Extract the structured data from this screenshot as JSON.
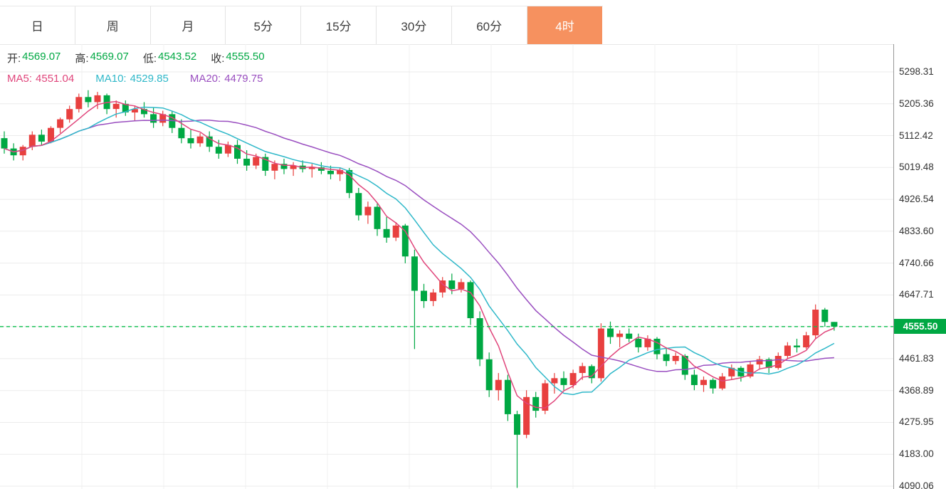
{
  "tabs": {
    "items": [
      {
        "label": "日"
      },
      {
        "label": "周"
      },
      {
        "label": "月"
      },
      {
        "label": "5分"
      },
      {
        "label": "15分"
      },
      {
        "label": "30分"
      },
      {
        "label": "60分"
      },
      {
        "label": "4时"
      }
    ],
    "active_index": 7,
    "active_bg": "#f6915f"
  },
  "legend": {
    "ohlc": [
      {
        "label": "开:",
        "value": "4569.07"
      },
      {
        "label": "高:",
        "value": "4569.07"
      },
      {
        "label": "低:",
        "value": "4543.52"
      },
      {
        "label": "收:",
        "value": "4555.50"
      }
    ],
    "mas": [
      {
        "label": "MA5:",
        "value": "4551.04"
      },
      {
        "label": "MA10:",
        "value": "4529.85"
      },
      {
        "label": "MA20:",
        "value": "4479.75"
      }
    ]
  },
  "chart_data": {
    "type": "candlestick",
    "timeframe": "4时",
    "color_convention": "red = up, green = down (CN market style)",
    "current_price": "4555.50",
    "last_bar": {
      "open": "4569.07",
      "high": "4569.07",
      "low": "4543.52",
      "close": "4555.50"
    },
    "ma_values": {
      "MA5": "4551.04",
      "MA10": "4529.85",
      "MA20": "4479.75"
    },
    "axis_ticks": [
      "5298.31",
      "5205.36",
      "5112.42",
      "5019.48",
      "4926.54",
      "4833.60",
      "4740.66",
      "4647.71",
      "4555.50",
      "4461.83",
      "4368.89",
      "4275.95",
      "4183.00",
      "4090.06"
    ],
    "ylim": [
      4090.06,
      5298.31
    ],
    "grid": true,
    "colors": {
      "up": "#e8403f",
      "down": "#00a843",
      "ma5": "#e0457b",
      "ma10": "#2fb8c9",
      "ma20": "#9a4fc0",
      "current_line": "#0bbf4d",
      "current_label_bg": "#00a843",
      "ohlc_value": "#00a843"
    },
    "candles": [
      [
        5105,
        5125,
        5060,
        5075
      ],
      [
        5075,
        5090,
        5040,
        5055
      ],
      [
        5055,
        5085,
        5040,
        5080
      ],
      [
        5080,
        5125,
        5070,
        5115
      ],
      [
        5115,
        5130,
        5085,
        5095
      ],
      [
        5095,
        5140,
        5090,
        5135
      ],
      [
        5135,
        5165,
        5120,
        5160
      ],
      [
        5160,
        5200,
        5150,
        5190
      ],
      [
        5190,
        5235,
        5180,
        5225
      ],
      [
        5225,
        5245,
        5195,
        5210
      ],
      [
        5210,
        5240,
        5190,
        5230
      ],
      [
        5230,
        5235,
        5175,
        5190
      ],
      [
        5190,
        5215,
        5165,
        5205
      ],
      [
        5205,
        5215,
        5170,
        5180
      ],
      [
        5180,
        5200,
        5155,
        5190
      ],
      [
        5190,
        5210,
        5165,
        5175
      ],
      [
        5175,
        5195,
        5135,
        5150
      ],
      [
        5150,
        5185,
        5140,
        5175
      ],
      [
        5175,
        5185,
        5120,
        5135
      ],
      [
        5135,
        5160,
        5090,
        5105
      ],
      [
        5105,
        5130,
        5075,
        5090
      ],
      [
        5090,
        5120,
        5080,
        5110
      ],
      [
        5110,
        5125,
        5065,
        5080
      ],
      [
        5080,
        5100,
        5045,
        5060
      ],
      [
        5060,
        5095,
        5050,
        5085
      ],
      [
        5085,
        5100,
        5030,
        5045
      ],
      [
        5045,
        5070,
        5010,
        5025
      ],
      [
        5025,
        5060,
        5015,
        5050
      ],
      [
        5050,
        5060,
        4995,
        5010
      ],
      [
        5010,
        5040,
        4985,
        5030
      ],
      [
        5030,
        5045,
        5000,
        5015
      ],
      [
        5015,
        5035,
        4995,
        5025
      ],
      [
        5025,
        5040,
        5005,
        5015
      ],
      [
        5015,
        5030,
        4990,
        5020
      ],
      [
        5020,
        5035,
        5000,
        5010
      ],
      [
        5010,
        5025,
        4985,
        5000
      ],
      [
        5000,
        5020,
        4980,
        5012
      ],
      [
        5012,
        5018,
        4930,
        4945
      ],
      [
        4945,
        4960,
        4865,
        4880
      ],
      [
        4880,
        4920,
        4855,
        4905
      ],
      [
        4905,
        4915,
        4820,
        4840
      ],
      [
        4840,
        4875,
        4800,
        4815
      ],
      [
        4815,
        4860,
        4805,
        4850
      ],
      [
        4850,
        4855,
        4740,
        4760
      ],
      [
        4760,
        4780,
        4490,
        4660
      ],
      [
        4660,
        4680,
        4610,
        4630
      ],
      [
        4630,
        4665,
        4615,
        4655
      ],
      [
        4655,
        4700,
        4640,
        4690
      ],
      [
        4690,
        4710,
        4650,
        4665
      ],
      [
        4665,
        4695,
        4655,
        4685
      ],
      [
        4685,
        4690,
        4560,
        4580
      ],
      [
        4580,
        4600,
        4440,
        4460
      ],
      [
        4460,
        4480,
        4350,
        4370
      ],
      [
        4370,
        4420,
        4340,
        4400
      ],
      [
        4400,
        4415,
        4280,
        4300
      ],
      [
        4300,
        4310,
        4085,
        4240
      ],
      [
        4240,
        4370,
        4230,
        4350
      ],
      [
        4350,
        4365,
        4290,
        4310
      ],
      [
        4310,
        4400,
        4300,
        4390
      ],
      [
        4390,
        4420,
        4360,
        4405
      ],
      [
        4405,
        4425,
        4370,
        4385
      ],
      [
        4385,
        4430,
        4375,
        4420
      ],
      [
        4420,
        4450,
        4400,
        4440
      ],
      [
        4440,
        4445,
        4390,
        4405
      ],
      [
        4405,
        4565,
        4395,
        4550
      ],
      [
        4550,
        4570,
        4505,
        4525
      ],
      [
        4525,
        4545,
        4495,
        4535
      ],
      [
        4535,
        4550,
        4510,
        4520
      ],
      [
        4520,
        4535,
        4480,
        4495
      ],
      [
        4495,
        4530,
        4485,
        4520
      ],
      [
        4520,
        4525,
        4460,
        4475
      ],
      [
        4475,
        4495,
        4440,
        4455
      ],
      [
        4455,
        4480,
        4445,
        4470
      ],
      [
        4470,
        4475,
        4400,
        4415
      ],
      [
        4415,
        4430,
        4370,
        4385
      ],
      [
        4385,
        4410,
        4365,
        4400
      ],
      [
        4400,
        4405,
        4360,
        4375
      ],
      [
        4375,
        4420,
        4370,
        4410
      ],
      [
        4410,
        4445,
        4400,
        4435
      ],
      [
        4435,
        4440,
        4395,
        4410
      ],
      [
        4410,
        4455,
        4405,
        4445
      ],
      [
        4445,
        4470,
        4430,
        4460
      ],
      [
        4460,
        4465,
        4420,
        4435
      ],
      [
        4435,
        4480,
        4430,
        4470
      ],
      [
        4470,
        4510,
        4460,
        4500
      ],
      [
        4500,
        4520,
        4480,
        4495
      ],
      [
        4495,
        4540,
        4490,
        4530
      ],
      [
        4530,
        4620,
        4520,
        4605
      ],
      [
        4605,
        4610,
        4555,
        4569
      ],
      [
        4569.07,
        4569.07,
        4543.52,
        4555.5
      ]
    ]
  }
}
